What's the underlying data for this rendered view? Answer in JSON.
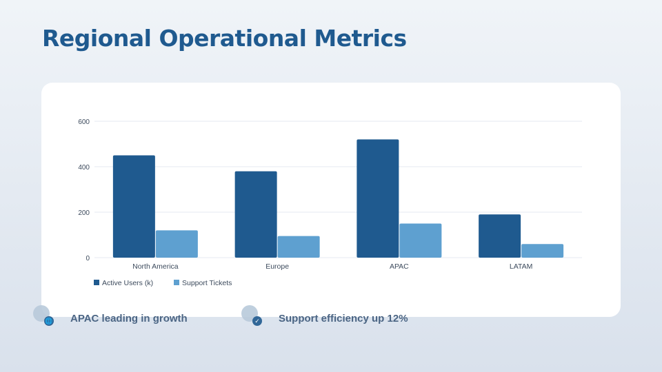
{
  "title": "Regional Operational Metrics",
  "chart_data": {
    "type": "bar",
    "categories": [
      "North America",
      "Europe",
      "APAC",
      "LATAM"
    ],
    "series": [
      {
        "name": "Active Users (k)",
        "values": [
          450,
          380,
          520,
          190
        ],
        "color": "#1f5a8f"
      },
      {
        "name": "Support Tickets",
        "values": [
          120,
          95,
          150,
          60
        ],
        "color": "#5ea0d0"
      }
    ],
    "yticks": [
      0,
      200,
      400,
      600
    ],
    "ylim": [
      0,
      600
    ],
    "grid": true,
    "legend": "bottom-left"
  },
  "insights": [
    {
      "icon": "globe-icon",
      "text": "APAC leading in growth"
    },
    {
      "icon": "check-icon",
      "text": "Support efficiency up 12%"
    }
  ]
}
